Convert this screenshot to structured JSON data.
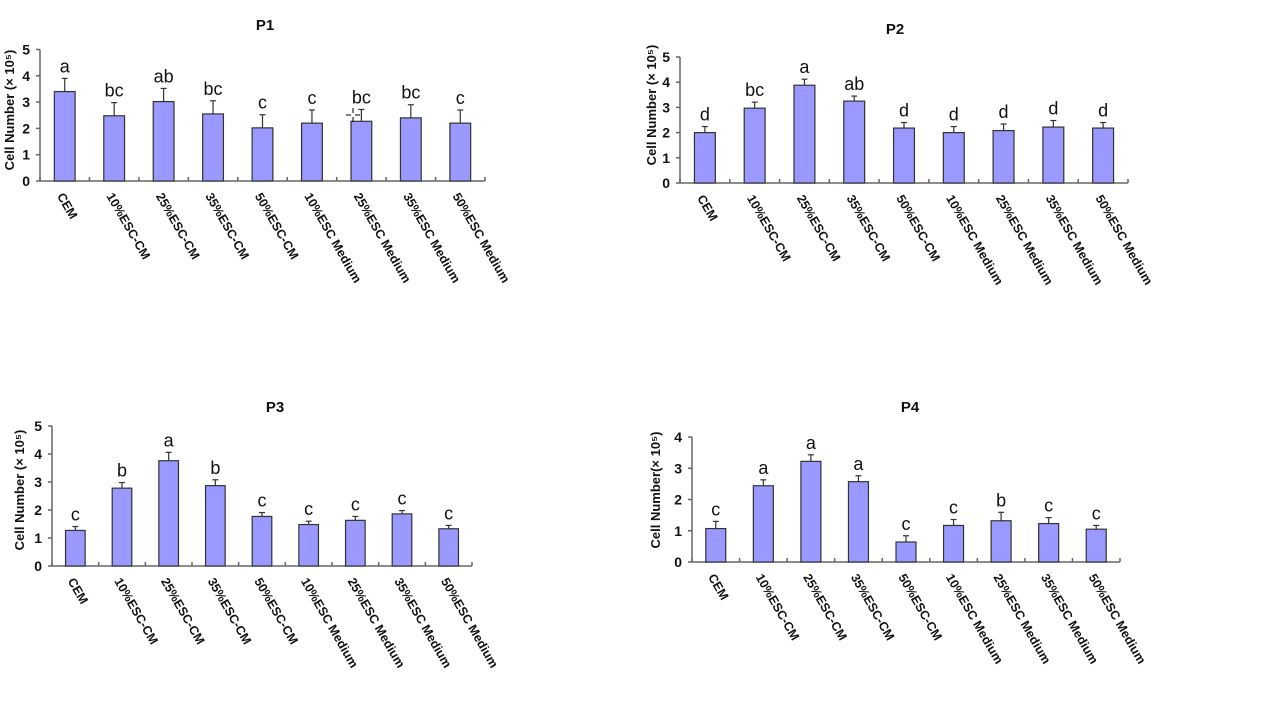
{
  "chart_data": [
    {
      "type": "bar",
      "title": "P1",
      "ylabel": "Cell Number (× 10⁵)",
      "xlabel": "",
      "ylim": [
        0,
        5
      ],
      "yticks": [
        "0",
        "1",
        "2",
        "3",
        "4",
        "5"
      ],
      "categories": [
        "CEM",
        "10%ESC-CM",
        "25%ESC-CM",
        "35%ESC-CM",
        "50%ESC-CM",
        "10%ESC Medium",
        "25%ESC Medium",
        "35%ESC Medium",
        "50%ESC Medium"
      ],
      "values": [
        3.4,
        2.48,
        3.02,
        2.55,
        2.02,
        2.2,
        2.27,
        2.4,
        2.2
      ],
      "errors": [
        0.5,
        0.5,
        0.5,
        0.5,
        0.5,
        0.5,
        0.45,
        0.5,
        0.5
      ],
      "significance": [
        "a",
        "bc",
        "ab",
        "bc",
        "c",
        "c",
        "bc",
        "bc",
        "c"
      ],
      "color": "#9999ff",
      "grid": false
    },
    {
      "type": "bar",
      "title": "P2",
      "ylabel": "Cell Number (× 10⁵)",
      "xlabel": "",
      "ylim": [
        0,
        5
      ],
      "yticks": [
        "0",
        "1",
        "2",
        "3",
        "4",
        "5"
      ],
      "categories": [
        "CEM",
        "10%ESC-CM",
        "25%ESC-CM",
        "35%ESC-CM",
        "50%ESC-CM",
        "10%ESC Medium",
        "25%ESC Medium",
        "35%ESC Medium",
        "50%ESC Medium"
      ],
      "values": [
        2.0,
        2.97,
        3.88,
        3.25,
        2.18,
        2.0,
        2.08,
        2.22,
        2.18
      ],
      "errors": [
        0.24,
        0.24,
        0.24,
        0.2,
        0.22,
        0.24,
        0.26,
        0.26,
        0.22
      ],
      "significance": [
        "d",
        "bc",
        "a",
        "ab",
        "d",
        "d",
        "d",
        "d",
        "d"
      ],
      "color": "#9999ff",
      "grid": false
    },
    {
      "type": "bar",
      "title": "P3",
      "ylabel": "Cell Number (× 10⁵)",
      "xlabel": "",
      "ylim": [
        0,
        5
      ],
      "yticks": [
        "0",
        "1",
        "2",
        "3",
        "4",
        "5"
      ],
      "categories": [
        "CEM",
        "10%ESC-CM",
        "25%ESC-CM",
        "35%ESC-CM",
        "50%ESC-CM",
        "10%ESC Medium",
        "25%ESC Medium",
        "35%ESC Medium",
        "50%ESC Medium"
      ],
      "values": [
        1.27,
        2.78,
        3.76,
        2.87,
        1.77,
        1.48,
        1.63,
        1.86,
        1.33
      ],
      "errors": [
        0.14,
        0.2,
        0.3,
        0.21,
        0.14,
        0.12,
        0.14,
        0.12,
        0.12
      ],
      "significance": [
        "c",
        "b",
        "a",
        "b",
        "c",
        "c",
        "c",
        "c",
        "c"
      ],
      "color": "#9999ff",
      "grid": false
    },
    {
      "type": "bar",
      "title": "P4",
      "ylabel": "Cell Number(× 10⁵)",
      "xlabel": "",
      "ylim": [
        0,
        4
      ],
      "yticks": [
        "0",
        "1",
        "2",
        "3",
        "4"
      ],
      "categories": [
        "CEM",
        "10%ESC-CM",
        "25%ESC-CM",
        "35%ESC-CM",
        "50%ESC-CM",
        "10%ESC Medium",
        "25%ESC Medium",
        "35%ESC Medium",
        "50%ESC Medium"
      ],
      "values": [
        1.07,
        2.44,
        3.22,
        2.57,
        0.64,
        1.17,
        1.32,
        1.23,
        1.05
      ],
      "errors": [
        0.23,
        0.19,
        0.21,
        0.19,
        0.2,
        0.19,
        0.27,
        0.19,
        0.12
      ],
      "significance": [
        "c",
        "a",
        "a",
        "a",
        "c",
        "c",
        "b",
        "c",
        "c"
      ],
      "color": "#9999ff",
      "grid": false
    }
  ]
}
